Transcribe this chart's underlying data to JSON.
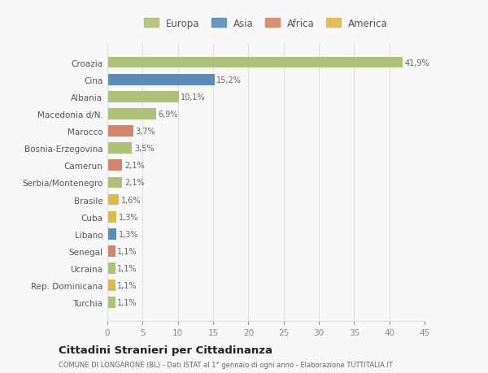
{
  "countries": [
    "Croazia",
    "Cina",
    "Albania",
    "Macedonia d/N.",
    "Marocco",
    "Bosnia-Erzegovina",
    "Camerun",
    "Serbia/Montenegro",
    "Brasile",
    "Cuba",
    "Libano",
    "Senegal",
    "Ucraina",
    "Rep. Dominicana",
    "Turchia"
  ],
  "values": [
    41.9,
    15.2,
    10.1,
    6.9,
    3.7,
    3.5,
    2.1,
    2.1,
    1.6,
    1.3,
    1.3,
    1.1,
    1.1,
    1.1,
    1.1
  ],
  "labels": [
    "41,9%",
    "15,2%",
    "10,1%",
    "6,9%",
    "3,7%",
    "3,5%",
    "2,1%",
    "2,1%",
    "1,6%",
    "1,3%",
    "1,3%",
    "1,1%",
    "1,1%",
    "1,1%",
    "1,1%"
  ],
  "continents": [
    "Europa",
    "Asia",
    "Europa",
    "Europa",
    "Africa",
    "Europa",
    "Africa",
    "Europa",
    "America",
    "America",
    "Asia",
    "Africa",
    "Europa",
    "America",
    "Europa"
  ],
  "continent_colors": {
    "Europa": "#adc178",
    "Asia": "#5b8db8",
    "Africa": "#d4846a",
    "America": "#e0b84a"
  },
  "title": "Cittadini Stranieri per Cittadinanza",
  "subtitle": "COMUNE DI LONGARONE (BL) - Dati ISTAT al 1° gennaio di ogni anno - Elaborazione TUTTITALIA.IT",
  "xlim": [
    0,
    45
  ],
  "xticks": [
    0,
    5,
    10,
    15,
    20,
    25,
    30,
    35,
    40,
    45
  ],
  "background_color": "#f8f8f8",
  "grid_color": "#e0e0e0"
}
